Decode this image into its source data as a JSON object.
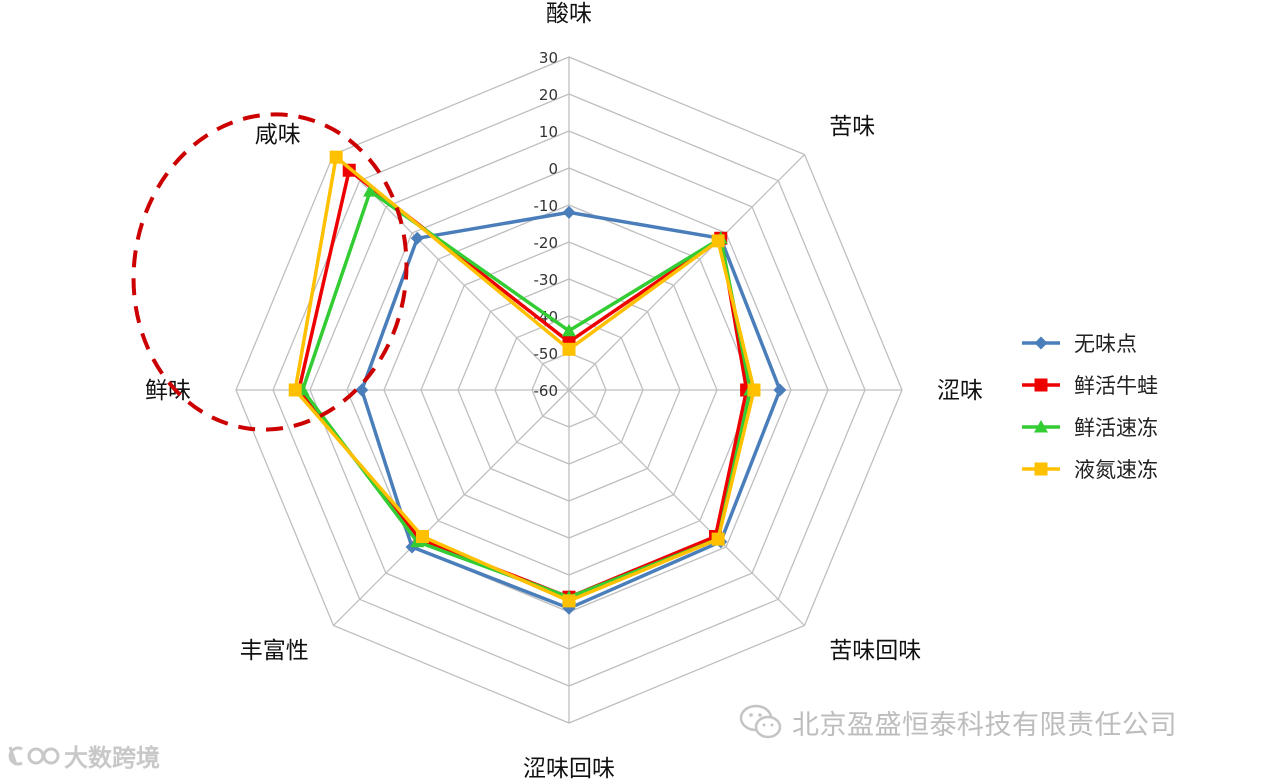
{
  "chart_data": {
    "type": "radar",
    "axes": [
      "酸味",
      "苦味",
      "涩味",
      "苦味回味",
      "涩味回味",
      "丰富性",
      "鲜味",
      "咸味"
    ],
    "ticks": [
      "30",
      "20",
      "10",
      "0",
      "-10",
      "-20",
      "-30",
      "-40",
      "-50",
      "-60"
    ],
    "r_range": [
      -60,
      30
    ],
    "grid": true,
    "legend_position": "right",
    "series": [
      {
        "name": "无味点",
        "color": "#4a7ebb",
        "marker": "diamond",
        "values": [
          -12,
          -2,
          -3,
          -2,
          -1,
          0,
          -4,
          -2
        ]
      },
      {
        "name": "鲜活牛蛙",
        "color": "#ee0000",
        "marker": "square",
        "values": [
          -47,
          -2,
          -12,
          -4,
          -4,
          -3,
          13,
          24
        ]
      },
      {
        "name": "鲜活速冻",
        "color": "#33cc33",
        "marker": "triangle",
        "values": [
          -44,
          -2,
          -11,
          -3,
          -4,
          -2,
          12,
          16
        ]
      },
      {
        "name": "液氮速冻",
        "color": "#ffc000",
        "marker": "square",
        "values": [
          -49,
          -3,
          -10,
          -3,
          -3,
          -4,
          14,
          29
        ]
      }
    ],
    "annotations": [
      {
        "type": "dashed-ellipse",
        "target": [
          "咸味",
          "鲜味"
        ],
        "color": "#cc0000"
      }
    ]
  },
  "watermark": {
    "text": "北京盈盛恒泰科技有限责任公司"
  },
  "corner_logo": {
    "text": "大数跨境"
  }
}
